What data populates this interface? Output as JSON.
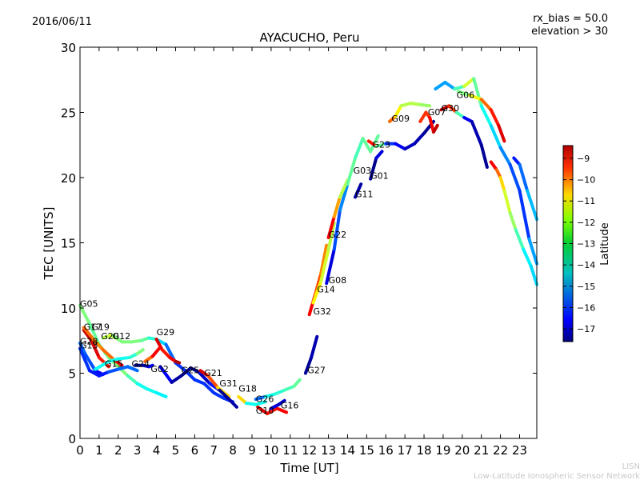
{
  "header": {
    "date": "2016/06/11",
    "params_line1": "rx_bias = 50.0",
    "params_line2": "elevation > 30"
  },
  "footer": {
    "org_short": "LISN",
    "org_full": "Low-Latitude Ionospheric Sensor Network"
  },
  "chart_data": {
    "type": "line",
    "title": "AYACUCHO, Peru",
    "xlabel": "Time [UT]",
    "ylabel": "TEC [UNITS]",
    "xlim": [
      0,
      23.9
    ],
    "ylim": [
      0,
      30
    ],
    "xticks": [
      0,
      1,
      2,
      3,
      4,
      5,
      6,
      7,
      8,
      9,
      10,
      11,
      12,
      13,
      14,
      15,
      16,
      17,
      18,
      19,
      20,
      21,
      22,
      23
    ],
    "yticks": [
      0,
      5,
      10,
      15,
      20,
      25,
      30
    ],
    "grid": false,
    "colorbar": {
      "label": "Latitude",
      "range": [
        -17.6,
        -8.4
      ],
      "ticks": [
        -9,
        -10,
        -11,
        -12,
        -13,
        -14,
        -15,
        -16,
        -17
      ],
      "colormap": "jet"
    },
    "series": [
      {
        "name": "G05",
        "label_at": [
          0.0,
          10.1
        ],
        "points": [
          [
            0,
            10.2,
            -13
          ],
          [
            0.5,
            8.8,
            -13
          ],
          [
            1,
            7.2,
            -13.5
          ],
          [
            1.5,
            6.2,
            -13
          ],
          [
            2,
            5.5,
            -13
          ],
          [
            2.5,
            4.8,
            -13
          ],
          [
            3,
            4.2,
            -14
          ],
          [
            3.5,
            3.8,
            -14
          ],
          [
            4,
            3.5,
            -14
          ],
          [
            4.5,
            3.2,
            -14.5
          ]
        ]
      },
      {
        "name": "G17",
        "label_at": [
          0.2,
          8.3
        ],
        "points": [
          [
            0.2,
            8.3,
            -9
          ],
          [
            0.6,
            7.5,
            -9
          ],
          [
            1.0,
            6.2,
            -9.5
          ],
          [
            1.5,
            5.5,
            -10
          ]
        ]
      },
      {
        "name": "G19",
        "label_at": [
          0.6,
          8.3
        ],
        "points": [
          [
            0.2,
            8.5,
            -10.5
          ],
          [
            0.7,
            7.6,
            -10.5
          ],
          [
            1.2,
            6.8,
            -11
          ],
          [
            1.8,
            6.0,
            -10
          ],
          [
            2.2,
            5.6,
            -9
          ]
        ]
      },
      {
        "name": "G28",
        "label_at": [
          0.0,
          7.2
        ],
        "points": [
          [
            0,
            7.3,
            -15.5
          ],
          [
            0.3,
            6.4,
            -15.5
          ],
          [
            0.8,
            5.2,
            -16
          ],
          [
            1.2,
            4.9,
            -17
          ]
        ]
      },
      {
        "name": "G13",
        "label_at": [
          0.0,
          6.9
        ],
        "points": [
          [
            0,
            6.9,
            -16
          ],
          [
            0.5,
            5.2,
            -16
          ],
          [
            1,
            4.8,
            -16.5
          ],
          [
            1.5,
            5.1,
            -16
          ],
          [
            2,
            5.3,
            -15.5
          ],
          [
            2.5,
            5.5,
            -15.5
          ],
          [
            3,
            5.2,
            -15.5
          ]
        ]
      },
      {
        "name": "G20",
        "label_at": [
          1.1,
          7.6
        ],
        "points": [
          [
            1.2,
            7.7,
            -12.5
          ],
          [
            1.6,
            7.9,
            -12.5
          ],
          [
            2,
            7.6,
            -11.5
          ]
        ]
      },
      {
        "name": "G12",
        "label_at": [
          1.7,
          7.6
        ],
        "points": [
          [
            1.7,
            7.9,
            -13
          ],
          [
            2.2,
            7.4,
            -13
          ],
          [
            2.7,
            7.4,
            -13
          ],
          [
            3.2,
            7.5,
            -13
          ],
          [
            3.6,
            7.7,
            -13.5
          ],
          [
            4.0,
            7.6,
            -14
          ],
          [
            4.5,
            7.2,
            -15
          ],
          [
            5,
            5.8,
            -16
          ],
          [
            5.5,
            5.2,
            -16
          ],
          [
            6,
            4.5,
            -16
          ],
          [
            6.5,
            4.2,
            -16
          ],
          [
            7,
            3.5,
            -16
          ],
          [
            7.5,
            3.1,
            -16
          ],
          [
            8,
            2.8,
            -16
          ]
        ]
      },
      {
        "name": "G15",
        "label_at": [
          1.3,
          5.5
        ],
        "points": [
          [
            0.8,
            5.3,
            -14
          ],
          [
            1.5,
            5.9,
            -14
          ],
          [
            2,
            6.1,
            -14
          ],
          [
            2.6,
            6.2,
            -14
          ],
          [
            3,
            6.5,
            -13.5
          ],
          [
            3.3,
            6.8,
            -12.5
          ]
        ]
      },
      {
        "name": "G29",
        "label_at": [
          4.0,
          7.9
        ],
        "points": [
          [
            4.0,
            7.6,
            -9
          ],
          [
            4.3,
            6.8,
            -9.5
          ],
          [
            4.7,
            6.2,
            -10
          ],
          [
            5.0,
            5.9,
            -9
          ],
          [
            5.2,
            5.8,
            -8.7
          ]
        ]
      },
      {
        "name": "G24",
        "label_at": [
          2.7,
          5.5
        ],
        "points": [
          [
            2.9,
            5.6,
            -17.5
          ],
          [
            3.3,
            5.6,
            -17.3
          ],
          [
            3.6,
            5.5,
            -17
          ],
          [
            3.8,
            5.6,
            -16
          ]
        ]
      },
      {
        "name": "G02",
        "label_at": [
          3.7,
          5.1
        ],
        "points": [
          [
            3.4,
            5.9,
            -11
          ],
          [
            3.8,
            6.3,
            -10
          ],
          [
            4.2,
            7.0,
            -9
          ]
        ]
      },
      {
        "name": "G25",
        "label_at": [
          5.3,
          5.0
        ],
        "points": [
          [
            4.2,
            5.5,
            -16
          ],
          [
            4.8,
            4.3,
            -17
          ],
          [
            5.3,
            4.8,
            -17.5
          ],
          [
            5.8,
            5.4,
            -17.5
          ],
          [
            6.2,
            5.1,
            -17.5
          ],
          [
            6.8,
            4.2,
            -16.5
          ],
          [
            7.5,
            3.5,
            -16
          ]
        ]
      },
      {
        "name": "G21",
        "label_at": [
          6.5,
          4.8
        ],
        "points": [
          [
            6.3,
            5.2,
            -9
          ],
          [
            6.7,
            4.8,
            -9.5
          ],
          [
            7.2,
            3.9,
            -11
          ],
          [
            7.8,
            3.2,
            -12
          ]
        ]
      },
      {
        "name": "G31",
        "label_at": [
          7.3,
          4.0
        ],
        "points": [
          [
            7.3,
            3.7,
            -17.5
          ],
          [
            7.8,
            3.0,
            -17.5
          ],
          [
            8.2,
            2.4,
            -17
          ]
        ]
      },
      {
        "name": "G18",
        "label_at": [
          8.3,
          3.6
        ],
        "points": [
          [
            8.3,
            3.2,
            -9
          ],
          [
            8.7,
            2.7,
            -14
          ],
          [
            9.2,
            2.6,
            -14
          ],
          [
            9.7,
            2.8,
            -14
          ]
        ]
      },
      {
        "name": "G26",
        "label_at": [
          9.2,
          2.8
        ],
        "points": [
          [
            9.2,
            3.0,
            -17
          ],
          [
            9.7,
            3.2,
            -14
          ],
          [
            10.2,
            3.4,
            -14
          ],
          [
            10.7,
            3.7,
            -13.5
          ],
          [
            11.2,
            4.0,
            -13.5
          ],
          [
            11.5,
            4.5,
            -13
          ]
        ]
      },
      {
        "name": "G10",
        "label_at": [
          9.2,
          1.9
        ],
        "points": [
          [
            9.3,
            2.4,
            -9
          ],
          [
            9.8,
            1.9,
            -9.5
          ],
          [
            10.3,
            2.3,
            -10
          ],
          [
            10.8,
            2.0,
            -9
          ]
        ]
      },
      {
        "name": "G16",
        "label_at": [
          10.5,
          2.3
        ],
        "points": [
          [
            10.0,
            2.3,
            -16.5
          ],
          [
            10.4,
            2.6,
            -17
          ],
          [
            10.7,
            2.9,
            -17
          ]
        ]
      },
      {
        "name": "G27",
        "label_at": [
          11.9,
          5.0
        ],
        "points": [
          [
            11.8,
            5.0,
            -17.5
          ],
          [
            12.1,
            6.2,
            -17.3
          ],
          [
            12.4,
            7.8,
            -17
          ]
        ]
      },
      {
        "name": "G32",
        "label_at": [
          12.2,
          9.5
        ],
        "points": [
          [
            12.0,
            9.5,
            -9
          ],
          [
            12.3,
            11,
            -10
          ],
          [
            12.6,
            12.6,
            -10.5
          ],
          [
            12.9,
            14.8,
            -11
          ]
        ]
      },
      {
        "name": "G14",
        "label_at": [
          12.4,
          11.2
        ],
        "points": [
          [
            12.2,
            10.4,
            -11.5
          ],
          [
            12.6,
            12.0,
            -12
          ],
          [
            13.0,
            14.5,
            -12.5
          ],
          [
            13.3,
            16.5,
            -12.5
          ]
        ]
      },
      {
        "name": "G08",
        "label_at": [
          13.0,
          11.9
        ],
        "points": [
          [
            12.9,
            11.9,
            -17.5
          ],
          [
            13.3,
            14.5,
            -16
          ],
          [
            13.6,
            17.5,
            -15.5
          ],
          [
            14.0,
            19.5,
            -15
          ]
        ]
      },
      {
        "name": "G22",
        "label_at": [
          13.0,
          15.4
        ],
        "points": [
          [
            13.0,
            15.4,
            -9
          ],
          [
            13.3,
            17.0,
            -10
          ],
          [
            13.6,
            18.5,
            -12
          ],
          [
            14.0,
            19.8,
            -13
          ]
        ]
      },
      {
        "name": "G11",
        "label_at": [
          14.4,
          18.5
        ],
        "points": [
          [
            14.4,
            18.5,
            -17.5
          ],
          [
            14.7,
            19.5,
            -17
          ]
        ]
      },
      {
        "name": "G03",
        "label_at": [
          14.3,
          20.3
        ],
        "points": [
          [
            14.0,
            19.5,
            -13
          ],
          [
            14.4,
            21.5,
            -13.5
          ],
          [
            14.8,
            23.0,
            -13.5
          ],
          [
            15.2,
            22.0,
            -13
          ],
          [
            15.6,
            23.2,
            -13.5
          ]
        ]
      },
      {
        "name": "G01",
        "label_at": [
          15.2,
          19.9
        ],
        "points": [
          [
            15.2,
            19.9,
            -17.5
          ],
          [
            15.5,
            21.5,
            -17.5
          ],
          [
            15.8,
            22.0,
            -16
          ]
        ]
      },
      {
        "name": "G23",
        "label_at": [
          15.3,
          22.3
        ],
        "points": [
          [
            15.1,
            22.8,
            -9
          ],
          [
            15.5,
            22.4,
            -10.5
          ],
          [
            16,
            22.6,
            -16
          ],
          [
            16.5,
            22.6,
            -16
          ],
          [
            17,
            22.2,
            -17
          ],
          [
            17.5,
            22.6,
            -17
          ],
          [
            18,
            23.4,
            -17.3
          ],
          [
            18.5,
            24.3,
            -17.5
          ]
        ]
      },
      {
        "name": "G09",
        "label_at": [
          16.3,
          24.3
        ],
        "points": [
          [
            16.2,
            24.3,
            -10
          ],
          [
            16.5,
            24.7,
            -11
          ],
          [
            16.8,
            25.5,
            -12.5
          ],
          [
            17.3,
            25.7,
            -12.5
          ],
          [
            17.8,
            25.6,
            -12.5
          ],
          [
            18.3,
            25.5,
            -13
          ]
        ]
      },
      {
        "name": "G07",
        "label_at": [
          18.2,
          24.8
        ],
        "points": [
          [
            17.8,
            24.3,
            -10
          ],
          [
            18.1,
            25.0,
            -10
          ],
          [
            18.3,
            24.6,
            -10
          ],
          [
            18.5,
            23.5,
            -9
          ],
          [
            18.7,
            24.0,
            -9
          ]
        ]
      },
      {
        "name": "G30",
        "label_at": [
          18.9,
          25.1
        ],
        "points": [
          [
            18.9,
            25.2,
            -9
          ],
          [
            19.3,
            25.5,
            -9
          ],
          [
            19.7,
            25.0,
            -11
          ],
          [
            20.1,
            24.6,
            -16
          ],
          [
            20.5,
            24.3,
            -17
          ],
          [
            21.0,
            22.5,
            -17.3
          ],
          [
            21.3,
            20.8,
            -17.5
          ]
        ]
      },
      {
        "name": "G06",
        "label_at": [
          19.7,
          26.1
        ],
        "points": [
          [
            18.6,
            26.8,
            -15
          ],
          [
            19.1,
            27.3,
            -15
          ],
          [
            19.6,
            26.8,
            -15
          ],
          [
            20.1,
            27.0,
            -12
          ],
          [
            20.6,
            27.6,
            -12.5
          ],
          [
            21.0,
            25.5,
            -14
          ],
          [
            21.5,
            24.0,
            -14
          ],
          [
            22.0,
            22.3,
            -15
          ],
          [
            22.5,
            21.0,
            -15.5
          ],
          [
            23.0,
            19.0,
            -16
          ],
          [
            23.5,
            15.3,
            -16
          ],
          [
            23.9,
            13.4,
            -14
          ]
        ]
      },
      {
        "name": "",
        "label_at": null,
        "points": [
          [
            19.8,
            26.6,
            -13
          ],
          [
            20.4,
            26.3,
            -13
          ],
          [
            21.0,
            26.0,
            -11
          ],
          [
            21.5,
            25.2,
            -10
          ],
          [
            21.9,
            24.0,
            -9.5
          ],
          [
            22.2,
            22.8,
            -9
          ]
        ]
      },
      {
        "name": "",
        "label_at": null,
        "points": [
          [
            21.5,
            21.2,
            -9
          ],
          [
            21.8,
            20.6,
            -10
          ],
          [
            22.0,
            20.0,
            -11
          ],
          [
            22.2,
            19.0,
            -12
          ],
          [
            22.5,
            17.3,
            -12.5
          ],
          [
            22.8,
            16.0,
            -13
          ],
          [
            23.2,
            14.5,
            -14
          ],
          [
            23.6,
            13.2,
            -14.5
          ],
          [
            23.9,
            11.8,
            -14.5
          ]
        ]
      },
      {
        "name": "",
        "label_at": null,
        "points": [
          [
            22.7,
            21.5,
            -16.5
          ],
          [
            23.0,
            21.0,
            -16
          ],
          [
            23.4,
            19.0,
            -15
          ],
          [
            23.9,
            16.8,
            -14.5
          ]
        ]
      }
    ]
  }
}
